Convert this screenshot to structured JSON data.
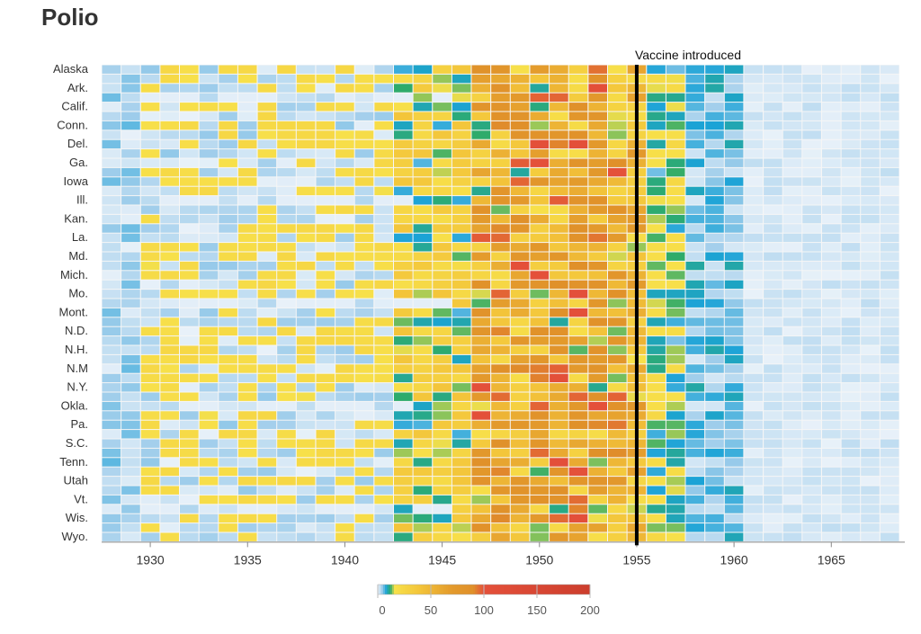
{
  "chart_data": {
    "type": "heatmap",
    "title": "Polio",
    "x_start": 1928,
    "x_end": 1968,
    "x_ticks": [
      1930,
      1935,
      1940,
      1945,
      1950,
      1955,
      1960,
      1965
    ],
    "rows": [
      "Alaska",
      "",
      "Ark.",
      "",
      "Calif.",
      "",
      "Conn.",
      "",
      "Del.",
      "",
      "Ga.",
      "",
      "Iowa",
      "",
      "Ill.",
      "",
      "Kan.",
      "",
      "La.",
      "",
      "Md.",
      "",
      "Mich.",
      "",
      "Mo.",
      "",
      "Mont.",
      "",
      "N.D.",
      "",
      "N.H.",
      "",
      "N.M",
      "",
      "N.Y.",
      "",
      "Okla.",
      "",
      "Pa.",
      "",
      "S.C.",
      "",
      "Tenn.",
      "",
      "Utah",
      "",
      "Vt.",
      "",
      "Wis.",
      "",
      "Wyo."
    ],
    "annotation": {
      "label": "Vaccine introduced",
      "x": 1955
    },
    "legend": {
      "ticks": [
        0,
        50,
        100,
        150,
        200
      ],
      "stops": [
        {
          "value": 0,
          "color": "#e8f1f9"
        },
        {
          "value": 4,
          "color": "#9fcdeb"
        },
        {
          "value": 8,
          "color": "#1ba3d6"
        },
        {
          "value": 12,
          "color": "#2eab69"
        },
        {
          "value": 16,
          "color": "#f7e04a"
        },
        {
          "value": 40,
          "color": "#f3c43a"
        },
        {
          "value": 70,
          "color": "#e39a2c"
        },
        {
          "value": 90,
          "color": "#e0902a"
        },
        {
          "value": 100,
          "color": "#e4503a"
        },
        {
          "value": 200,
          "color": "#cc3e2d"
        }
      ]
    },
    "background_color": "#f6f6f6",
    "missing_color": "#f6f6f6"
  }
}
